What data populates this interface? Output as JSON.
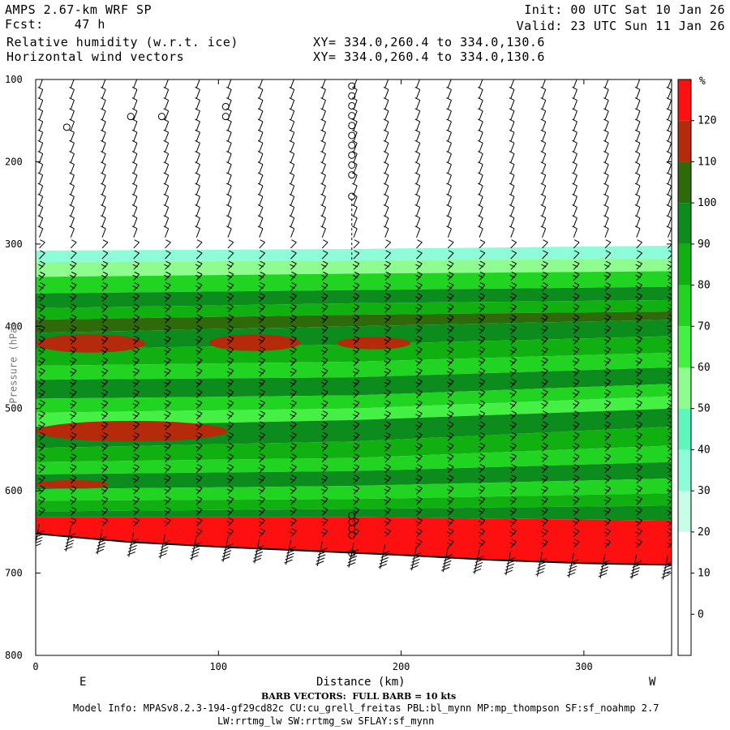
{
  "header": {
    "model": "AMPS 2.67-km WRF SP",
    "fcst_label": "Fcst:",
    "fcst_value": "47 h",
    "field1": "Relative humidity (w.r.t. ice)",
    "field2": "Horizontal wind vectors",
    "xy1": "XY= 334.0,260.4 to 334.0,130.6",
    "xy2": "XY= 334.0,260.4 to 334.0,130.6",
    "init": "Init: 00 UTC Sat 10 Jan 26",
    "valid": "Valid: 23 UTC Sun 11 Jan 26"
  },
  "footer": {
    "barb_note": "BARB VECTORS:  FULL BARB = 10 kts",
    "model_info_1": "Model Info: MPASv8.2.3-194-gf29cd82c CU:cu_grell_freitas PBL:bl_mynn MP:mp_thompson SF:sf_noahmp 2.7",
    "model_info_2": "LW:rrtmg_lw SW:rrtmg_sw SFLAY:sf_mynn"
  },
  "colors": {
    "rh_levels": [
      "#ffffff",
      "#ffffff",
      "#ffffff",
      "#ffffff",
      "#c8fde8",
      "#8efcd8",
      "#5ef6bc",
      "#8efc8e",
      "#44f044",
      "#22d422",
      "#10b010",
      "#0c8c1c",
      "#2e6a0a",
      "#b42a0a",
      "#ff1010"
    ],
    "barb": "#000000",
    "terrain_line": "#000000"
  },
  "chart_data": {
    "type": "heatmap",
    "title": "Relative humidity (w.r.t. ice)",
    "xlabel": "Distance (km)",
    "ylabel": "Pressure (hPa)",
    "x_ticks": [
      0,
      100,
      200,
      300
    ],
    "y_ticks": [
      100,
      200,
      300,
      400,
      500,
      600,
      700,
      800
    ],
    "xlim": [
      0,
      348
    ],
    "ylim": [
      800,
      100
    ],
    "y_scale": "linear (pressure, inverted)",
    "x_end_labels": [
      "E",
      "W"
    ],
    "colorbar": {
      "unit": "%",
      "tick_labels": [
        0,
        10,
        20,
        30,
        40,
        50,
        60,
        70,
        80,
        90,
        100,
        110,
        120
      ],
      "colors": [
        "#ffffff",
        "#ffffff",
        "#ffffff",
        "#c8fde8",
        "#8efcd8",
        "#5ef6bc",
        "#8efc8e",
        "#44f044",
        "#22d422",
        "#10b010",
        "#0c8c1c",
        "#2e6a0a",
        "#b42a0a",
        "#ff1010"
      ]
    },
    "moist_layer_top_hPa": 303,
    "surface_pressure_hPa": {
      "x_km": [
        0,
        50,
        100,
        150,
        200,
        250,
        300,
        348
      ],
      "p": [
        652,
        662,
        668,
        673,
        678,
        684,
        688,
        690
      ]
    },
    "rh_bands": [
      {
        "level": 40,
        "top": [
          308,
          306,
          302
        ],
        "bottom": [
          322,
          320,
          318
        ]
      },
      {
        "level": 60,
        "top": [
          322,
          320,
          318
        ],
        "bottom": [
          340,
          336,
          333
        ]
      },
      {
        "level": 80,
        "top": [
          340,
          336,
          333
        ],
        "bottom": [
          360,
          356,
          352
        ]
      },
      {
        "level": 100,
        "top": [
          360,
          356,
          352
        ],
        "bottom": [
          378,
          372,
          368
        ]
      },
      {
        "level": 90,
        "top": [
          378,
          372,
          368
        ],
        "bottom": [
          392,
          386,
          382
        ]
      },
      {
        "level": 110,
        "top": [
          392,
          386,
          382
        ],
        "bottom": [
          408,
          400,
          392
        ]
      },
      {
        "level": 100,
        "top": [
          408,
          400,
          392
        ],
        "bottom": [
          428,
          422,
          412
        ]
      },
      {
        "level": 90,
        "top": [
          428,
          422,
          412
        ],
        "bottom": [
          448,
          443,
          432
        ]
      },
      {
        "level": 80,
        "top": [
          448,
          443,
          432
        ],
        "bottom": [
          465,
          462,
          450
        ]
      },
      {
        "level": 100,
        "top": [
          465,
          462,
          450
        ],
        "bottom": [
          488,
          484,
          470
        ]
      },
      {
        "level": 80,
        "top": [
          488,
          484,
          470
        ],
        "bottom": [
          505,
          500,
          485
        ]
      },
      {
        "level": 70,
        "top": [
          505,
          500,
          485
        ],
        "bottom": [
          522,
          514,
          500
        ]
      },
      {
        "level": 100,
        "top": [
          522,
          514,
          500
        ],
        "bottom": [
          548,
          540,
          522
        ]
      },
      {
        "level": 90,
        "top": [
          548,
          540,
          522
        ],
        "bottom": [
          565,
          560,
          545
        ]
      },
      {
        "level": 80,
        "top": [
          565,
          560,
          545
        ],
        "bottom": [
          580,
          576,
          565
        ]
      },
      {
        "level": 100,
        "top": [
          580,
          576,
          565
        ],
        "bottom": [
          598,
          594,
          585
        ]
      },
      {
        "level": 80,
        "top": [
          598,
          594,
          585
        ],
        "bottom": [
          612,
          610,
          603
        ]
      },
      {
        "level": 90,
        "top": [
          612,
          610,
          603
        ],
        "bottom": [
          625,
          622,
          618
        ]
      },
      {
        "level": 100,
        "top": [
          625,
          622,
          618
        ],
        "bottom": [
          632,
          632,
          636
        ]
      },
      {
        "level": 130,
        "top": [
          632,
          632,
          636
        ],
        "bottom": [
          700,
          700,
          700
        ]
      }
    ],
    "rh_patches": [
      {
        "level": 120,
        "x": [
          0,
          60
        ],
        "p": [
          410,
          432
        ]
      },
      {
        "level": 120,
        "x": [
          95,
          145
        ],
        "p": [
          410,
          430
        ]
      },
      {
        "level": 120,
        "x": [
          165,
          205
        ],
        "p": [
          413,
          428
        ]
      },
      {
        "level": 120,
        "x": [
          0,
          105
        ],
        "p": [
          515,
          540
        ]
      },
      {
        "level": 120,
        "x": [
          0,
          40
        ],
        "p": [
          587,
          597
        ]
      }
    ],
    "calm_markers": [
      {
        "x_km": 17,
        "p": [
          158
        ]
      },
      {
        "x_km": 52,
        "p": [
          145
        ]
      },
      {
        "x_km": 69,
        "p": [
          145
        ]
      },
      {
        "x_km": 104,
        "p": [
          133,
          145
        ]
      },
      {
        "x_km": 173,
        "p": [
          108,
          120,
          132,
          144,
          156,
          168,
          180,
          192,
          204,
          216,
          242
        ]
      },
      {
        "x_km": 173,
        "p": [
          630,
          638,
          646,
          654,
          676
        ]
      }
    ]
  }
}
